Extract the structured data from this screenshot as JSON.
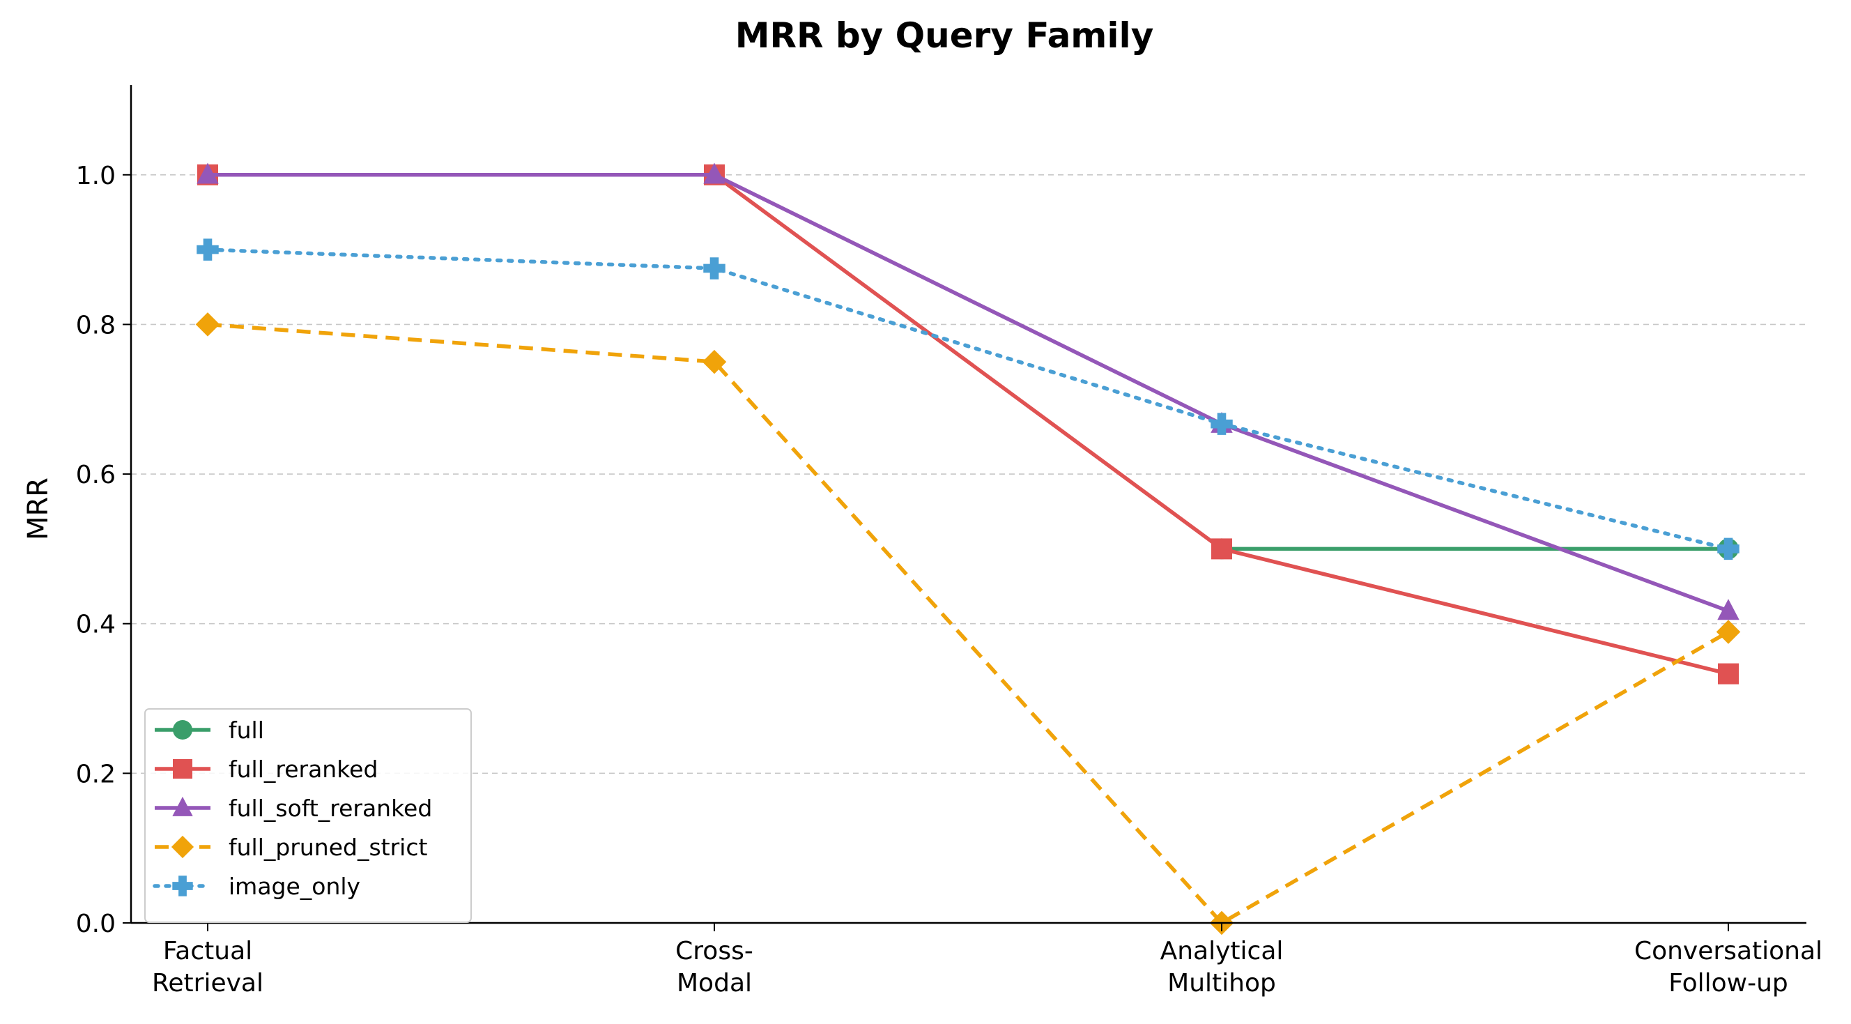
{
  "chart_data": {
    "type": "line",
    "title": "MRR by Query Family",
    "xlabel": "",
    "ylabel": "MRR",
    "categories": [
      [
        "Factual",
        "Retrieval"
      ],
      [
        "Cross-",
        "Modal"
      ],
      [
        "Analytical",
        "Multihop"
      ],
      [
        "Conversational",
        "Follow-up"
      ]
    ],
    "ylim": [
      0,
      1.12
    ],
    "yticks": [
      "0.0",
      "0.2",
      "0.4",
      "0.6",
      "0.8",
      "1.0"
    ],
    "grid": "y-dashed",
    "legend_position": "lower-left",
    "series": [
      {
        "name": "full",
        "color": "#3a9e6a",
        "marker": "circle",
        "dash": "solid",
        "values": [
          null,
          null,
          0.5,
          0.5
        ]
      },
      {
        "name": "full_reranked",
        "color": "#e05252",
        "marker": "square",
        "dash": "solid",
        "values": [
          1.0,
          1.0,
          0.5,
          0.333
        ]
      },
      {
        "name": "full_soft_reranked",
        "color": "#9457b8",
        "marker": "triangle",
        "dash": "solid",
        "values": [
          1.0,
          1.0,
          0.667,
          0.417
        ]
      },
      {
        "name": "full_pruned_strict",
        "color": "#f0a30a",
        "marker": "diamond",
        "dash": "dashed",
        "values": [
          0.8,
          0.75,
          0.0,
          0.389
        ]
      },
      {
        "name": "image_only",
        "color": "#4a9fd4",
        "marker": "plus",
        "dash": "dotted",
        "values": [
          0.9,
          0.875,
          0.667,
          0.5
        ]
      }
    ]
  }
}
